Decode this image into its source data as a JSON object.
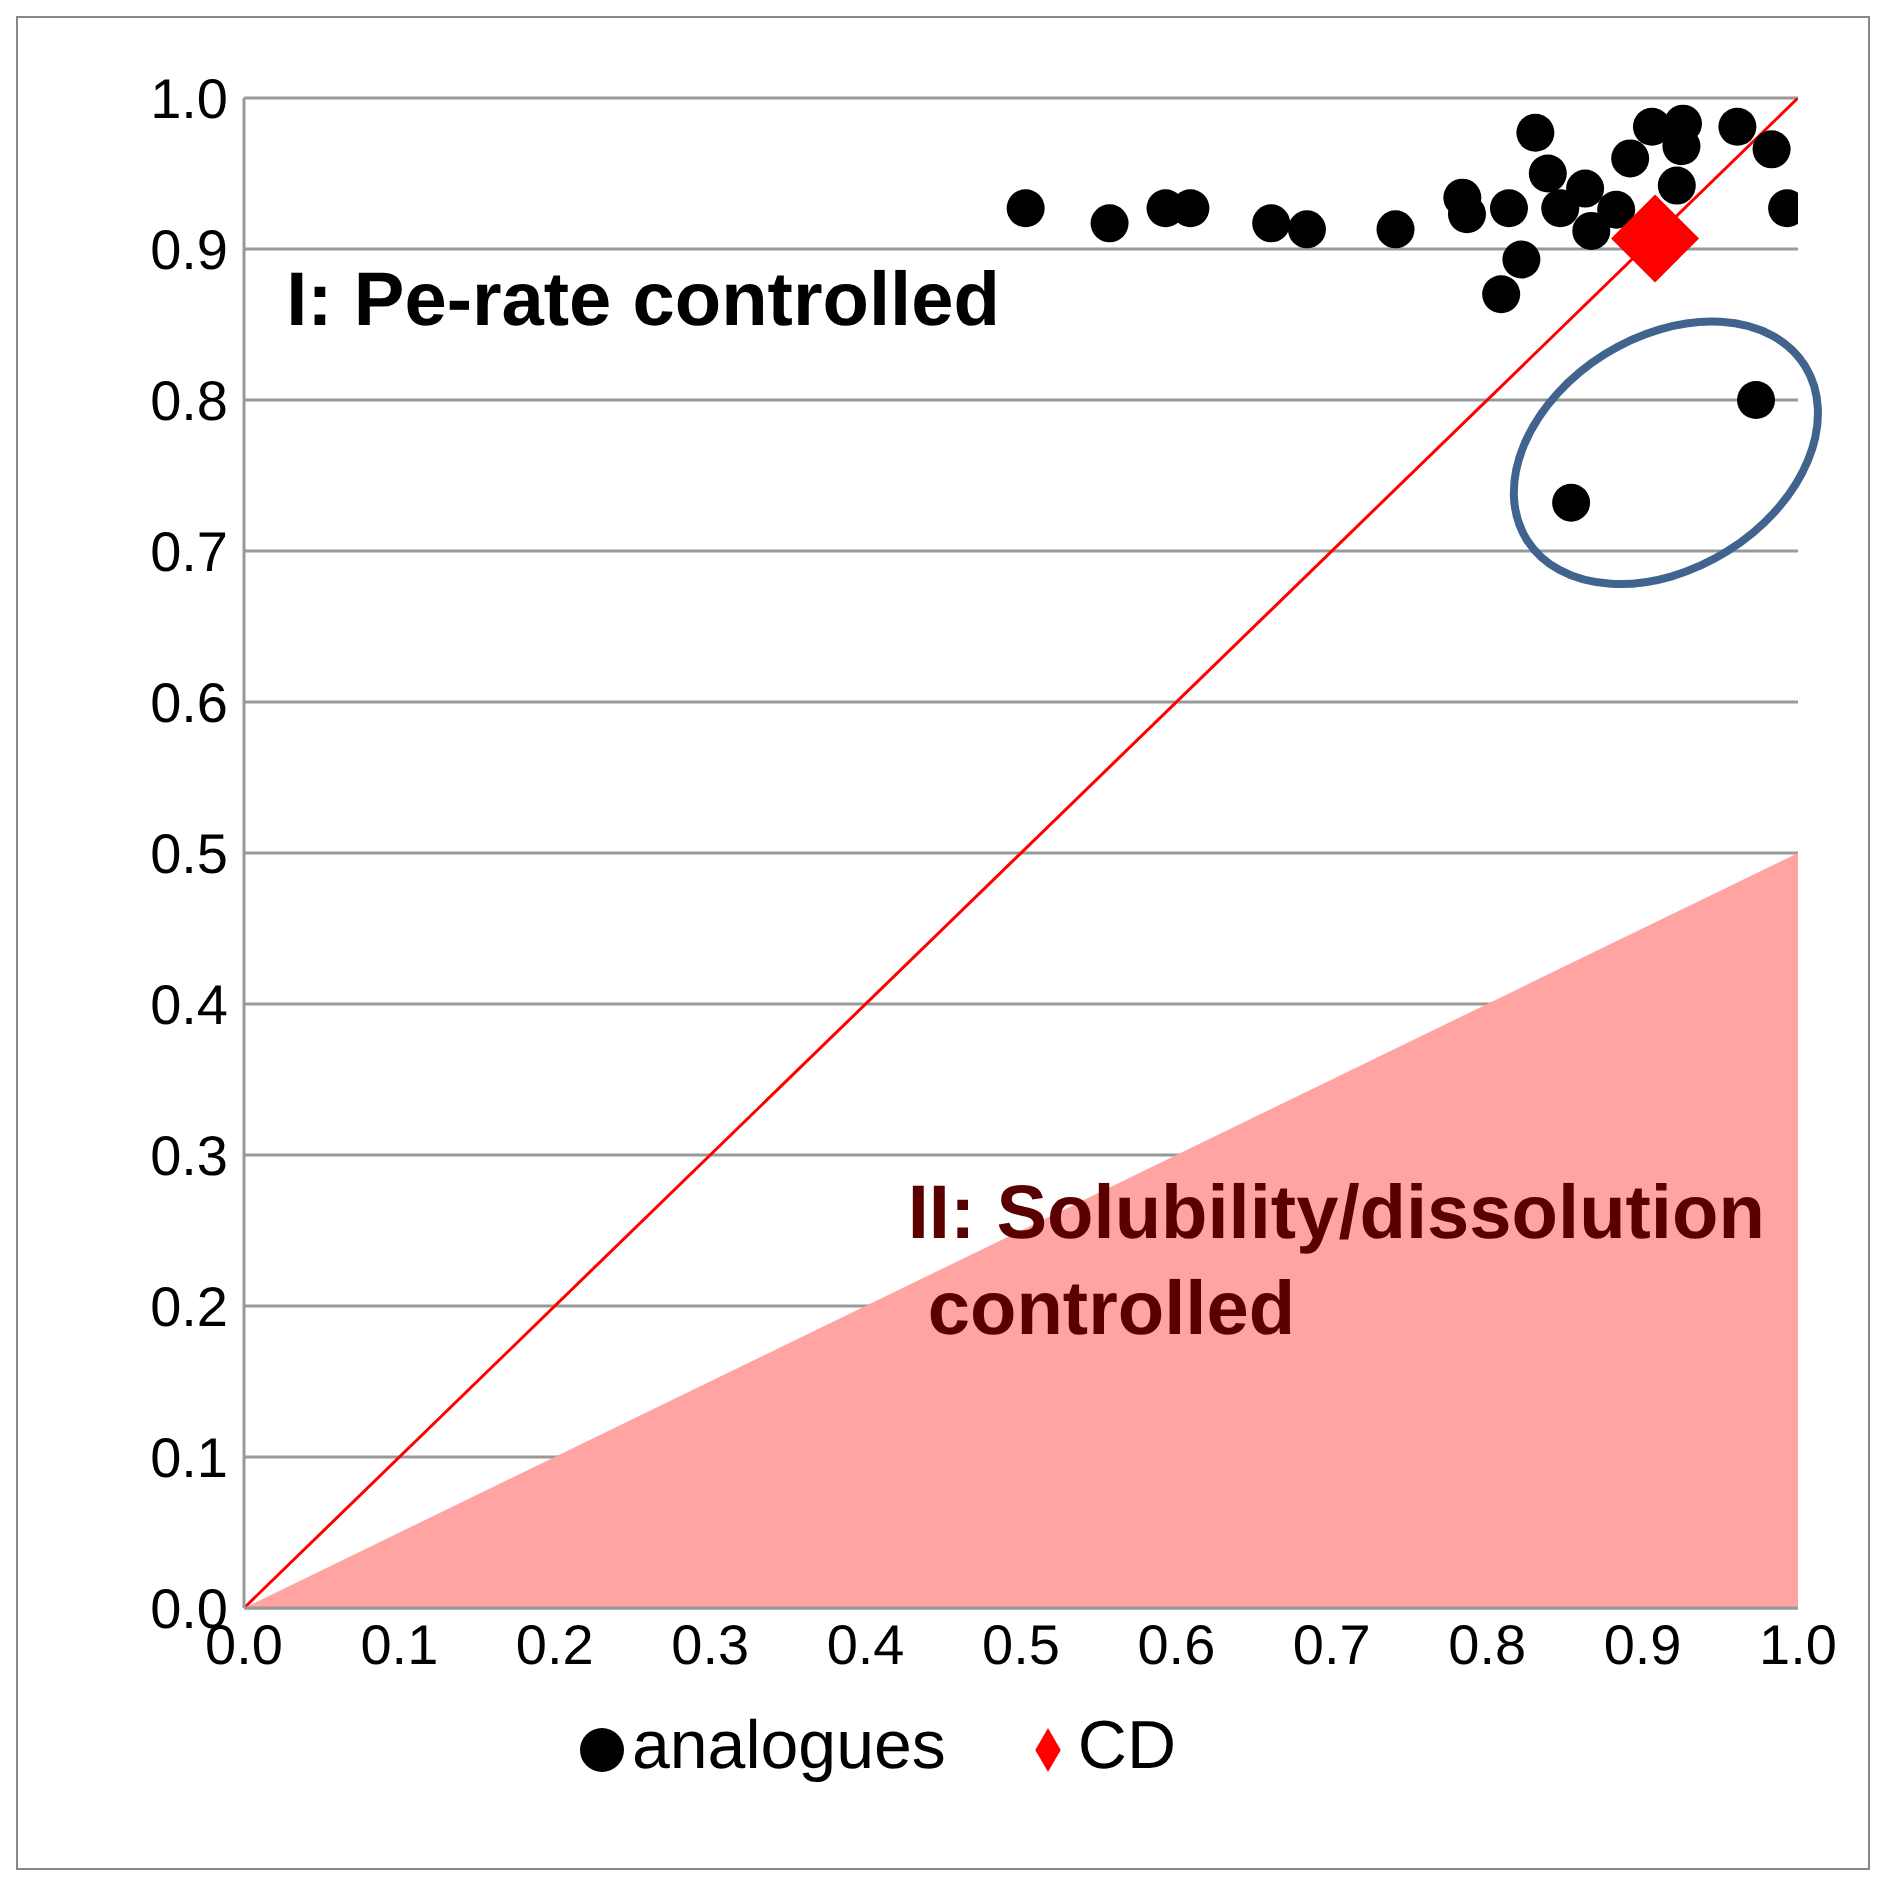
{
  "chart_data": {
    "type": "scatter",
    "annotations": [
      "I: Pe-rate controlled",
      "II: Solubility/dissolution\ncontrolled"
    ],
    "xlim": [
      0,
      1
    ],
    "ylim": [
      0,
      1
    ],
    "xticks": [
      {
        "value": 0,
        "label": "0.0"
      },
      {
        "value": 0.1,
        "label": "0.1"
      },
      {
        "value": 0.2,
        "label": "0.2"
      },
      {
        "value": 0.3,
        "label": "0.3"
      },
      {
        "value": 0.4,
        "label": "0.4"
      },
      {
        "value": 0.5,
        "label": "0.5"
      },
      {
        "value": 0.6,
        "label": "0.6"
      },
      {
        "value": 0.7,
        "label": "0.7"
      },
      {
        "value": 0.8,
        "label": "0.8"
      },
      {
        "value": 0.9,
        "label": "0.9"
      },
      {
        "value": 1,
        "label": "1.0"
      }
    ],
    "yticks": [
      {
        "value": 0,
        "label": "0.0"
      },
      {
        "value": 0.1,
        "label": "0.1"
      },
      {
        "value": 0.2,
        "label": "0.2"
      },
      {
        "value": 0.3,
        "label": "0.3"
      },
      {
        "value": 0.4,
        "label": "0.4"
      },
      {
        "value": 0.5,
        "label": "0.5"
      },
      {
        "value": 0.6,
        "label": "0.6"
      },
      {
        "value": 0.7,
        "label": "0.7"
      },
      {
        "value": 0.8,
        "label": "0.8"
      },
      {
        "value": 0.9,
        "label": "0.9"
      },
      {
        "value": 1,
        "label": "1.0"
      }
    ],
    "grid": "y",
    "legend": "bottom",
    "series": [
      {
        "type": "area",
        "color": "#ffa3a3",
        "x": [
          0,
          1
        ],
        "values": [
          0,
          0.5
        ]
      },
      {
        "type": "line",
        "color": "#ff0000",
        "x": [
          0,
          1
        ],
        "values": [
          0,
          1
        ],
        "marker": "none"
      },
      {
        "name": "analogues",
        "color": "#000000",
        "marker": "circle",
        "x": [
          0.503,
          0.557,
          0.593,
          0.609,
          0.661,
          0.684,
          0.741,
          0.784,
          0.787,
          0.814,
          0.822,
          0.809,
          0.831,
          0.839,
          0.847,
          0.863,
          0.867,
          0.876,
          0.892,
          0.906,
          0.926,
          0.925,
          0.922,
          0.961,
          0.983,
          0.993,
          0.926,
          0.892,
          0.883,
          0.973,
          0.854
        ],
        "values": [
          0.927,
          0.917,
          0.927,
          0.927,
          0.917,
          0.913,
          0.913,
          0.934,
          0.923,
          0.927,
          0.893,
          0.87,
          0.977,
          0.95,
          0.927,
          0.94,
          0.912,
          null,
          0.96,
          0.981,
          0.983,
          0.968,
          0.942,
          0.981,
          0.966,
          0.927,
          null,
          null,
          0.926,
          0.8,
          0.732
        ]
      },
      {
        "name": "CD",
        "color": "#ff0000",
        "marker": "diamond",
        "x": [
          0.908
        ],
        "values": [
          0.907
        ]
      }
    ]
  }
}
